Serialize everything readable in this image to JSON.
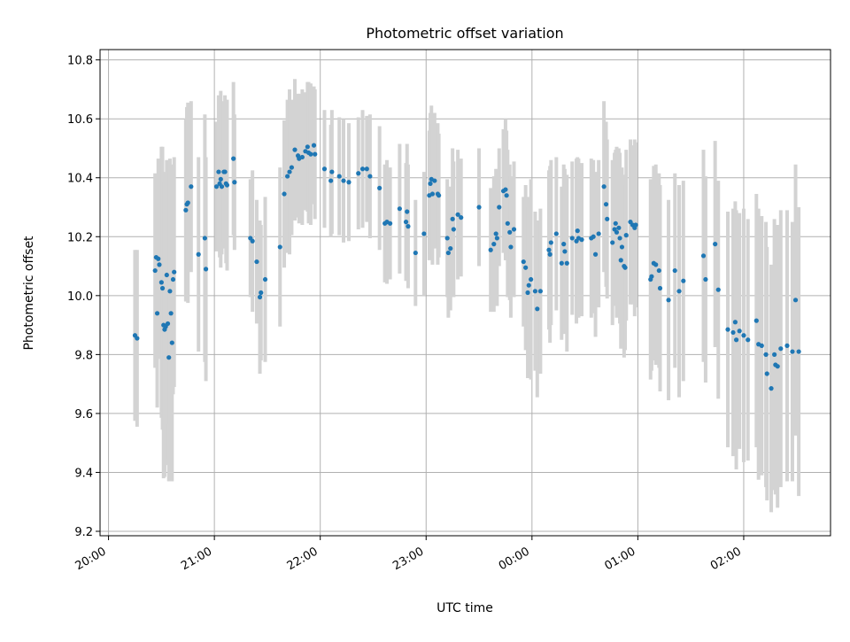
{
  "chart_data": {
    "type": "scatter",
    "title": "Photometric offset variation",
    "xlabel": "UTC time",
    "ylabel": "Photometric offset",
    "x_unit": "UTC time of day (hours; continues past midnight)",
    "xlim": [
      19.92,
      26.82
    ],
    "ylim": [
      9.185,
      10.835
    ],
    "grid": true,
    "xticks": [
      {
        "value": 20,
        "label": "20:00"
      },
      {
        "value": 21,
        "label": "21:00"
      },
      {
        "value": 22,
        "label": "22:00"
      },
      {
        "value": 23,
        "label": "23:00"
      },
      {
        "value": 24,
        "label": "00:00"
      },
      {
        "value": 25,
        "label": "01:00"
      },
      {
        "value": 26,
        "label": "02:00"
      }
    ],
    "yticks": [
      {
        "value": 9.2,
        "label": "9.2"
      },
      {
        "value": 9.4,
        "label": "9.4"
      },
      {
        "value": 9.6,
        "label": "9.6"
      },
      {
        "value": 9.8,
        "label": "9.8"
      },
      {
        "value": 10.0,
        "label": "10.0"
      },
      {
        "value": 10.2,
        "label": "10.2"
      },
      {
        "value": 10.4,
        "label": "10.4"
      },
      {
        "value": 10.6,
        "label": "10.6"
      },
      {
        "value": 10.8,
        "label": "10.8"
      }
    ],
    "series": [
      {
        "point_color": "#1f77b4",
        "errorbar_color": "#d3d3d3",
        "points": [
          [
            20.25,
            9.865,
            0.29
          ],
          [
            20.27,
            9.855,
            0.3
          ],
          [
            20.44,
            10.085,
            0.33
          ],
          [
            20.45,
            10.13,
            0.28
          ],
          [
            20.46,
            9.94,
            0.32
          ],
          [
            20.47,
            10.125,
            0.34
          ],
          [
            20.48,
            10.105,
            0.31
          ],
          [
            20.5,
            10.045,
            0.46
          ],
          [
            20.51,
            10.025,
            0.48
          ],
          [
            20.52,
            9.9,
            0.52
          ],
          [
            20.53,
            9.885,
            0.5
          ],
          [
            20.54,
            9.895,
            0.47
          ],
          [
            20.55,
            10.07,
            0.39
          ],
          [
            20.56,
            9.905,
            0.46
          ],
          [
            20.57,
            9.79,
            0.42
          ],
          [
            20.58,
            10.015,
            0.45
          ],
          [
            20.59,
            9.94,
            0.43
          ],
          [
            20.6,
            9.84,
            0.47
          ],
          [
            20.61,
            10.055,
            0.39
          ],
          [
            20.62,
            10.08,
            0.39
          ],
          [
            20.73,
            10.29,
            0.31
          ],
          [
            20.74,
            10.31,
            0.33
          ],
          [
            20.75,
            10.315,
            0.34
          ],
          [
            20.78,
            10.37,
            0.29
          ],
          [
            20.85,
            10.14,
            0.33
          ],
          [
            20.91,
            10.195,
            0.42
          ],
          [
            20.92,
            10.09,
            0.38
          ],
          [
            21.02,
            10.37,
            0.22
          ],
          [
            21.04,
            10.42,
            0.26
          ],
          [
            21.05,
            10.38,
            0.25
          ],
          [
            21.06,
            10.395,
            0.3
          ],
          [
            21.07,
            10.37,
            0.23
          ],
          [
            21.09,
            10.42,
            0.24
          ],
          [
            21.1,
            10.42,
            0.26
          ],
          [
            21.11,
            10.38,
            0.27
          ],
          [
            21.12,
            10.375,
            0.29
          ],
          [
            21.18,
            10.465,
            0.26
          ],
          [
            21.19,
            10.385,
            0.23
          ],
          [
            21.34,
            10.195,
            0.2
          ],
          [
            21.36,
            10.185,
            0.24
          ],
          [
            21.4,
            10.115,
            0.21
          ],
          [
            21.43,
            9.995,
            0.26
          ],
          [
            21.44,
            10.01,
            0.23
          ],
          [
            21.48,
            10.055,
            0.28
          ],
          [
            21.62,
            10.165,
            0.27
          ],
          [
            21.66,
            10.345,
            0.25
          ],
          [
            21.69,
            10.405,
            0.26
          ],
          [
            21.71,
            10.42,
            0.28
          ],
          [
            21.73,
            10.435,
            0.23
          ],
          [
            21.76,
            10.495,
            0.24
          ],
          [
            21.79,
            10.475,
            0.21
          ],
          [
            21.8,
            10.465,
            0.22
          ],
          [
            21.83,
            10.47,
            0.23
          ],
          [
            21.86,
            10.49,
            0.2
          ],
          [
            21.88,
            10.505,
            0.22
          ],
          [
            21.89,
            10.485,
            0.24
          ],
          [
            21.91,
            10.48,
            0.24
          ],
          [
            21.94,
            10.51,
            0.2
          ],
          [
            21.95,
            10.48,
            0.22
          ],
          [
            22.04,
            10.43,
            0.2
          ],
          [
            22.1,
            10.39,
            0.19
          ],
          [
            22.11,
            10.42,
            0.21
          ],
          [
            22.18,
            10.405,
            0.2
          ],
          [
            22.22,
            10.39,
            0.21
          ],
          [
            22.27,
            10.385,
            0.2
          ],
          [
            22.36,
            10.415,
            0.19
          ],
          [
            22.4,
            10.43,
            0.2
          ],
          [
            22.44,
            10.43,
            0.18
          ],
          [
            22.47,
            10.405,
            0.21
          ],
          [
            22.56,
            10.365,
            0.21
          ],
          [
            22.61,
            10.245,
            0.2
          ],
          [
            22.63,
            10.25,
            0.21
          ],
          [
            22.66,
            10.245,
            0.19
          ],
          [
            22.75,
            10.295,
            0.22
          ],
          [
            22.81,
            10.25,
            0.2
          ],
          [
            22.82,
            10.285,
            0.23
          ],
          [
            22.83,
            10.235,
            0.21
          ],
          [
            22.9,
            10.145,
            0.18
          ],
          [
            22.98,
            10.21,
            0.21
          ],
          [
            23.03,
            10.34,
            0.22
          ],
          [
            23.04,
            10.38,
            0.24
          ],
          [
            23.05,
            10.395,
            0.25
          ],
          [
            23.06,
            10.345,
            0.24
          ],
          [
            23.08,
            10.39,
            0.23
          ],
          [
            23.11,
            10.345,
            0.24
          ],
          [
            23.12,
            10.34,
            0.21
          ],
          [
            23.2,
            10.195,
            0.2
          ],
          [
            23.21,
            10.145,
            0.22
          ],
          [
            23.23,
            10.16,
            0.21
          ],
          [
            23.25,
            10.26,
            0.24
          ],
          [
            23.26,
            10.225,
            0.23
          ],
          [
            23.3,
            10.275,
            0.22
          ],
          [
            23.33,
            10.265,
            0.2
          ],
          [
            23.5,
            10.3,
            0.2
          ],
          [
            23.61,
            10.155,
            0.21
          ],
          [
            23.64,
            10.175,
            0.23
          ],
          [
            23.66,
            10.21,
            0.22
          ],
          [
            23.67,
            10.195,
            0.23
          ],
          [
            23.69,
            10.3,
            0.2
          ],
          [
            23.73,
            10.355,
            0.21
          ],
          [
            23.75,
            10.36,
            0.24
          ],
          [
            23.76,
            10.34,
            0.22
          ],
          [
            23.77,
            10.245,
            0.25
          ],
          [
            23.79,
            10.215,
            0.23
          ],
          [
            23.8,
            10.165,
            0.24
          ],
          [
            23.83,
            10.225,
            0.23
          ],
          [
            23.92,
            10.115,
            0.22
          ],
          [
            23.94,
            10.095,
            0.28
          ],
          [
            23.96,
            10.01,
            0.29
          ],
          [
            23.97,
            10.035,
            0.3
          ],
          [
            23.99,
            10.055,
            0.34
          ],
          [
            24.03,
            10.015,
            0.27
          ],
          [
            24.05,
            9.955,
            0.3
          ],
          [
            24.08,
            10.015,
            0.28
          ],
          [
            24.16,
            10.155,
            0.27
          ],
          [
            24.17,
            10.14,
            0.3
          ],
          [
            24.18,
            10.18,
            0.28
          ],
          [
            24.23,
            10.21,
            0.26
          ],
          [
            24.28,
            10.11,
            0.26
          ],
          [
            24.3,
            10.175,
            0.27
          ],
          [
            24.31,
            10.15,
            0.28
          ],
          [
            24.33,
            10.11,
            0.3
          ],
          [
            24.38,
            10.195,
            0.26
          ],
          [
            24.42,
            10.185,
            0.28
          ],
          [
            24.43,
            10.22,
            0.25
          ],
          [
            24.44,
            10.195,
            0.27
          ],
          [
            24.47,
            10.19,
            0.26
          ],
          [
            24.56,
            10.195,
            0.27
          ],
          [
            24.58,
            10.2,
            0.26
          ],
          [
            24.6,
            10.14,
            0.28
          ],
          [
            24.63,
            10.21,
            0.25
          ],
          [
            24.68,
            10.37,
            0.29
          ],
          [
            24.7,
            10.31,
            0.28
          ],
          [
            24.71,
            10.26,
            0.27
          ],
          [
            24.76,
            10.18,
            0.28
          ],
          [
            24.78,
            10.225,
            0.26
          ],
          [
            24.79,
            10.245,
            0.25
          ],
          [
            24.8,
            10.215,
            0.29
          ],
          [
            24.82,
            10.23,
            0.27
          ],
          [
            24.83,
            10.195,
            0.29
          ],
          [
            24.84,
            10.12,
            0.3
          ],
          [
            24.85,
            10.165,
            0.27
          ],
          [
            24.87,
            10.1,
            0.31
          ],
          [
            24.88,
            10.095,
            0.28
          ],
          [
            24.89,
            10.205,
            0.29
          ],
          [
            24.93,
            10.25,
            0.28
          ],
          [
            24.95,
            10.24,
            0.27
          ],
          [
            24.97,
            10.23,
            0.3
          ],
          [
            24.98,
            10.24,
            0.28
          ],
          [
            25.12,
            10.055,
            0.34
          ],
          [
            25.13,
            10.065,
            0.32
          ],
          [
            25.15,
            10.11,
            0.33
          ],
          [
            25.17,
            10.105,
            0.34
          ],
          [
            25.2,
            10.085,
            0.33
          ],
          [
            25.21,
            10.025,
            0.35
          ],
          [
            25.29,
            9.985,
            0.34
          ],
          [
            25.35,
            10.085,
            0.33
          ],
          [
            25.39,
            10.015,
            0.36
          ],
          [
            25.43,
            10.05,
            0.34
          ],
          [
            25.62,
            10.135,
            0.36
          ],
          [
            25.64,
            10.055,
            0.35
          ],
          [
            25.73,
            10.175,
            0.35
          ],
          [
            25.76,
            10.02,
            0.37
          ],
          [
            25.85,
            9.885,
            0.4
          ],
          [
            25.9,
            9.875,
            0.42
          ],
          [
            25.92,
            9.91,
            0.41
          ],
          [
            25.93,
            9.85,
            0.44
          ],
          [
            25.96,
            9.88,
            0.4
          ],
          [
            26.0,
            9.865,
            0.43
          ],
          [
            26.04,
            9.85,
            0.41
          ],
          [
            26.12,
            9.915,
            0.43
          ],
          [
            26.14,
            9.835,
            0.46
          ],
          [
            26.17,
            9.83,
            0.44
          ],
          [
            26.21,
            9.8,
            0.45
          ],
          [
            26.22,
            9.735,
            0.43
          ],
          [
            26.26,
            9.685,
            0.42
          ],
          [
            26.29,
            9.8,
            0.46
          ],
          [
            26.3,
            9.765,
            0.44
          ],
          [
            26.32,
            9.76,
            0.48
          ],
          [
            26.35,
            9.82,
            0.47
          ],
          [
            26.41,
            9.83,
            0.46
          ],
          [
            26.46,
            9.81,
            0.44
          ],
          [
            26.49,
            9.985,
            0.46
          ],
          [
            26.52,
            9.81,
            0.49
          ]
        ]
      }
    ]
  }
}
